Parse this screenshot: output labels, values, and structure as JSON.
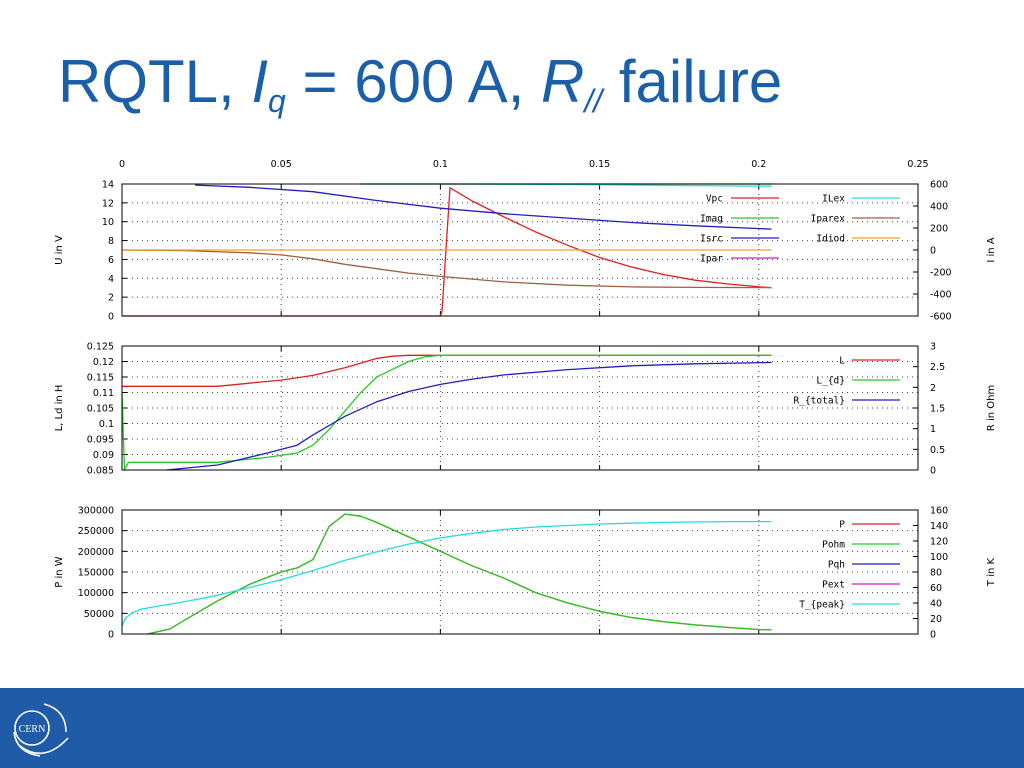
{
  "title": {
    "prefix": "RQTL, ",
    "i_symbol": "I",
    "i_sub": "q",
    "middle": " = 600 A, ",
    "r_symbol": "R",
    "r_sub": "//",
    "suffix": " failure"
  },
  "logo": {
    "text": "CERN",
    "colors": {
      "footer": "#1f5ba6",
      "logo": "#ffffff"
    }
  },
  "chart_data": [
    {
      "type": "line",
      "xlim": [
        0,
        0.25
      ],
      "xticks": [
        "0",
        "0.05",
        "0.1",
        "0.15",
        "0.2",
        "0.25"
      ],
      "ylabel": "U in V",
      "ylim": [
        0,
        14
      ],
      "yticks": [
        "0",
        "2",
        "4",
        "6",
        "8",
        "10",
        "12",
        "14"
      ],
      "y2label": "I in A",
      "y2lim": [
        -600,
        600
      ],
      "y2ticks": [
        "-600",
        "-400",
        "-200",
        "0",
        "200",
        "400",
        "600"
      ],
      "grid": true,
      "legend": "top-right",
      "series": [
        {
          "name": "Vpc",
          "axis": "left",
          "color": "#e02020",
          "x": [
            0,
            0.1,
            0.1005,
            0.103,
            0.11,
            0.12,
            0.13,
            0.14,
            0.15,
            0.16,
            0.17,
            0.18,
            0.19,
            0.2,
            0.204
          ],
          "y": [
            0,
            0,
            0.5,
            13.6,
            12.2,
            10.5,
            8.9,
            7.5,
            6.2,
            5.2,
            4.4,
            3.8,
            3.4,
            3.1,
            3.0
          ]
        },
        {
          "name": "Imag",
          "axis": "left",
          "color": "#22cc22",
          "x": [
            0.075,
            0.204
          ],
          "y": [
            14,
            14
          ]
        },
        {
          "name": "Isrc",
          "axis": "right",
          "color": "#2020c0",
          "x": [
            0.023,
            0.04,
            0.06,
            0.08,
            0.1,
            0.12,
            0.14,
            0.16,
            0.18,
            0.204
          ],
          "y": [
            590,
            570,
            530,
            450,
            380,
            330,
            290,
            250,
            220,
            190
          ]
        },
        {
          "name": "Ipar",
          "axis": "right",
          "color": "#cc22cc",
          "x": [],
          "y": []
        },
        {
          "name": "ILex",
          "axis": "right",
          "color": "#22dddd",
          "x": [
            0.075,
            0.1,
            0.125,
            0.15,
            0.175,
            0.204
          ],
          "y": [
            600,
            600,
            598,
            594,
            586,
            580
          ]
        },
        {
          "name": "Iparex",
          "axis": "right",
          "color": "#a06040",
          "x": [
            0,
            0.02,
            0.04,
            0.05,
            0.06,
            0.07,
            0.08,
            0.09,
            0.1,
            0.12,
            0.14,
            0.16,
            0.18,
            0.2,
            0.204
          ],
          "y": [
            0,
            -5,
            -25,
            -45,
            -80,
            -130,
            -170,
            -210,
            -240,
            -290,
            -320,
            -335,
            -340,
            -342,
            -342
          ]
        },
        {
          "name": "Idiod",
          "axis": "right",
          "color": "#f0a020",
          "x": [
            0,
            0.204
          ],
          "y": [
            0,
            0
          ]
        }
      ]
    },
    {
      "type": "line",
      "xlim": [
        0,
        0.25
      ],
      "ylabel": "L, Ld in H",
      "ylim": [
        0.085,
        0.125
      ],
      "yticks": [
        "0.085",
        "0.09",
        "0.095",
        "0.1",
        "0.105",
        "0.11",
        "0.115",
        "0.12",
        "0.125"
      ],
      "y2label": "R in Ohm",
      "y2lim": [
        0,
        3
      ],
      "y2ticks": [
        "0",
        "0.5",
        "1",
        "1.5",
        "2",
        "2.5",
        "3"
      ],
      "grid": true,
      "legend": "top-right",
      "series": [
        {
          "name": "L",
          "axis": "left",
          "color": "#e02020",
          "x": [
            0,
            0.03,
            0.04,
            0.05,
            0.06,
            0.07,
            0.075,
            0.08,
            0.085,
            0.09,
            0.1,
            0.204
          ],
          "y": [
            0.112,
            0.112,
            0.113,
            0.114,
            0.1155,
            0.118,
            0.1195,
            0.121,
            0.1217,
            0.122,
            0.122,
            0.122
          ]
        },
        {
          "name": "L_{d}",
          "axis": "left",
          "color": "#22cc22",
          "x": [
            0,
            0.0008,
            0.002,
            0.03,
            0.045,
            0.055,
            0.06,
            0.065,
            0.07,
            0.075,
            0.08,
            0.085,
            0.09,
            0.095,
            0.1,
            0.204
          ],
          "y": [
            0.11,
            0.085,
            0.0875,
            0.0875,
            0.089,
            0.0905,
            0.093,
            0.098,
            0.104,
            0.11,
            0.115,
            0.1175,
            0.12,
            0.1215,
            0.122,
            0.122
          ]
        },
        {
          "name": "R_{total}",
          "axis": "right",
          "color": "#2020c0",
          "x": [
            0.014,
            0.03,
            0.045,
            0.055,
            0.06,
            0.07,
            0.08,
            0.09,
            0.1,
            0.11,
            0.12,
            0.14,
            0.16,
            0.18,
            0.204
          ],
          "y": [
            0,
            0.12,
            0.4,
            0.6,
            0.85,
            1.3,
            1.65,
            1.9,
            2.07,
            2.2,
            2.3,
            2.43,
            2.52,
            2.57,
            2.6
          ]
        }
      ]
    },
    {
      "type": "line",
      "xlim": [
        0,
        0.25
      ],
      "ylabel": "P in W",
      "ylim": [
        0,
        300000
      ],
      "yticks": [
        "0",
        "50000",
        "100000",
        "150000",
        "200000",
        "250000",
        "300000"
      ],
      "y2label": "T in K",
      "y2lim": [
        0,
        160
      ],
      "y2ticks": [
        "0",
        "20",
        "40",
        "60",
        "80",
        "100",
        "120",
        "140",
        "160"
      ],
      "grid": true,
      "legend": "top-right",
      "series": [
        {
          "name": "P",
          "axis": "left",
          "color": "#e02020",
          "x": [
            0.008,
            0.015,
            0.02,
            0.03,
            0.04,
            0.05,
            0.055,
            0.06,
            0.065,
            0.07,
            0.075,
            0.08,
            0.09,
            0.1,
            0.11,
            0.12,
            0.13,
            0.14,
            0.15,
            0.16,
            0.17,
            0.18,
            0.19,
            0.2,
            0.204
          ],
          "y": [
            0,
            12000,
            35000,
            80000,
            120000,
            150000,
            160000,
            180000,
            260000,
            290000,
            285000,
            270000,
            235000,
            200000,
            165000,
            135000,
            100000,
            75000,
            55000,
            40000,
            30000,
            22000,
            16000,
            11000,
            10000
          ]
        },
        {
          "name": "Pohm",
          "axis": "left",
          "color": "#22cc22",
          "x": [
            0.008,
            0.015,
            0.02,
            0.03,
            0.04,
            0.05,
            0.055,
            0.06,
            0.065,
            0.07,
            0.075,
            0.08,
            0.09,
            0.1,
            0.11,
            0.12,
            0.13,
            0.14,
            0.15,
            0.16,
            0.17,
            0.18,
            0.19,
            0.2,
            0.204
          ],
          "y": [
            0,
            12000,
            35000,
            80000,
            120000,
            150000,
            160000,
            180000,
            260000,
            290000,
            285000,
            270000,
            235000,
            200000,
            165000,
            135000,
            100000,
            75000,
            55000,
            40000,
            30000,
            22000,
            16000,
            11000,
            10000
          ]
        },
        {
          "name": "Pqh",
          "axis": "left",
          "color": "#2020c0",
          "x": [],
          "y": []
        },
        {
          "name": "Pext",
          "axis": "left",
          "color": "#cc22cc",
          "x": [],
          "y": []
        },
        {
          "name": "T_{peak}",
          "axis": "right",
          "color": "#22dddd",
          "x": [
            0,
            0.001,
            0.003,
            0.006,
            0.01,
            0.02,
            0.03,
            0.04,
            0.05,
            0.06,
            0.07,
            0.08,
            0.09,
            0.1,
            0.11,
            0.12,
            0.13,
            0.14,
            0.15,
            0.16,
            0.17,
            0.18,
            0.19,
            0.2,
            0.204
          ],
          "y": [
            10,
            20,
            27,
            32,
            35,
            42,
            50,
            60,
            70,
            82,
            95,
            106,
            116,
            124,
            130,
            135,
            138,
            140,
            142,
            143,
            144,
            144.5,
            145,
            145,
            145
          ]
        }
      ]
    }
  ]
}
